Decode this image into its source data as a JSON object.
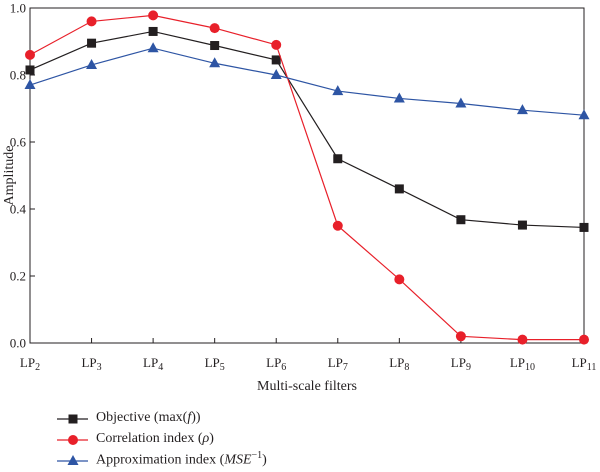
{
  "chart_data": {
    "type": "line",
    "x_base": "LP",
    "x_subscripts": [
      "2",
      "3",
      "4",
      "5",
      "6",
      "7",
      "8",
      "9",
      "10",
      "11"
    ],
    "xlabel": "Multi-scale filters",
    "ylabel": "Amplitude",
    "ylim": [
      0,
      1.0
    ],
    "yticks": [
      "0.0",
      "0.2",
      "0.4",
      "0.6",
      "0.8",
      "1.0"
    ],
    "series": [
      {
        "name": "Objective (max(f))",
        "label_plain": "Objective (max(",
        "label_italic": "f",
        "label_tail": "))",
        "marker": "square",
        "color": "#231f20",
        "values": [
          0.815,
          0.895,
          0.93,
          0.888,
          0.845,
          0.55,
          0.46,
          0.368,
          0.352,
          0.345
        ]
      },
      {
        "name": "Correlation index (ρ)",
        "label_plain": "Correlation index (",
        "label_italic": "ρ",
        "label_tail": ")",
        "marker": "circle",
        "color": "#e8202a",
        "values": [
          0.86,
          0.96,
          0.978,
          0.94,
          0.89,
          0.35,
          0.19,
          0.02,
          0.01,
          0.01
        ]
      },
      {
        "name": "Approximation index (MSE⁻¹)",
        "label_plain": "Approximation index (",
        "label_italic": "MSE",
        "label_sup": "−1",
        "label_tail": ")",
        "marker": "triangle",
        "color": "#2e55a4",
        "values": [
          0.77,
          0.83,
          0.88,
          0.835,
          0.8,
          0.752,
          0.73,
          0.715,
          0.695,
          0.68
        ]
      }
    ],
    "grid": false,
    "legend_position": "bottom"
  }
}
